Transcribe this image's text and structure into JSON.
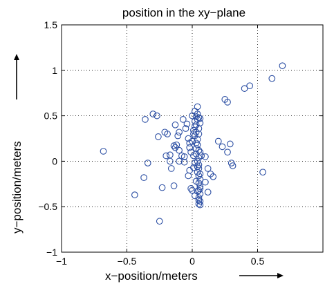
{
  "chart_data": {
    "type": "scatter",
    "title": "position in the xy−plane",
    "xlabel": "x−position/meters",
    "ylabel": "y−position/meters",
    "xlim": [
      -1,
      1
    ],
    "ylim": [
      -1,
      1.5
    ],
    "x_ticks": [
      -1,
      -0.5,
      0,
      0.5
    ],
    "x_tick_labels": [
      "−1",
      "−0.5",
      "0",
      "0.5"
    ],
    "y_ticks": [
      -1,
      -0.5,
      0,
      0.5,
      1,
      1.5
    ],
    "y_tick_labels": [
      "−1",
      "−0.5",
      "0",
      "0.5",
      "1",
      "1.5"
    ],
    "grid": true,
    "grid_style": "dotted",
    "marker": "open-circle",
    "marker_color": "#2b4ea3",
    "axis_label_arrows": true,
    "series": [
      {
        "points": [
          [
            -0.68,
            0.11
          ],
          [
            -0.44,
            -0.37
          ],
          [
            -0.37,
            -0.18
          ],
          [
            -0.34,
            -0.02
          ],
          [
            -0.36,
            0.46
          ],
          [
            -0.3,
            0.52
          ],
          [
            -0.27,
            0.5
          ],
          [
            -0.26,
            0.27
          ],
          [
            -0.23,
            -0.29
          ],
          [
            -0.21,
            0.32
          ],
          [
            -0.19,
            0.3
          ],
          [
            -0.2,
            0.06
          ],
          [
            -0.17,
            0.07
          ],
          [
            -0.16,
            -0.08
          ],
          [
            -0.17,
            0.0
          ],
          [
            -0.14,
            0.17
          ],
          [
            -0.13,
            0.15
          ],
          [
            -0.12,
            0.18
          ],
          [
            -0.11,
            0.28
          ],
          [
            -0.13,
            0.4
          ],
          [
            -0.1,
            0.32
          ],
          [
            -0.1,
            0.12
          ],
          [
            -0.08,
            0.06
          ],
          [
            -0.1,
            0.0
          ],
          [
            -0.06,
            0.05
          ],
          [
            -0.07,
            0.46
          ],
          [
            -0.05,
            0.36
          ],
          [
            -0.03,
            0.25
          ],
          [
            -0.02,
            0.2
          ],
          [
            -0.02,
            0.15
          ],
          [
            -0.01,
            0.1
          ],
          [
            -0.02,
            -0.1
          ],
          [
            -0.03,
            -0.16
          ],
          [
            -0.01,
            -0.3
          ],
          [
            0.0,
            -0.32
          ],
          [
            0.02,
            -0.38
          ],
          [
            -0.25,
            -0.66
          ],
          [
            -0.14,
            -0.27
          ],
          [
            -0.06,
            -0.01
          ],
          [
            -0.04,
            0.41
          ],
          [
            0.0,
            0.5
          ],
          [
            0.02,
            0.55
          ],
          [
            0.04,
            0.6
          ],
          [
            0.01,
            0.34
          ],
          [
            0.03,
            0.32
          ],
          [
            0.06,
            0.1
          ],
          [
            0.1,
            0.05
          ],
          [
            0.12,
            -0.08
          ],
          [
            0.14,
            -0.14
          ],
          [
            0.16,
            -0.17
          ],
          [
            0.1,
            -0.23
          ],
          [
            0.12,
            -0.34
          ],
          [
            0.2,
            0.22
          ],
          [
            0.23,
            0.16
          ],
          [
            0.25,
            0.68
          ],
          [
            0.27,
            0.65
          ],
          [
            0.27,
            0.1
          ],
          [
            0.29,
            0.19
          ],
          [
            0.3,
            -0.02
          ],
          [
            0.31,
            -0.05
          ],
          [
            0.4,
            0.8
          ],
          [
            0.44,
            0.83
          ],
          [
            0.54,
            -0.12
          ],
          [
            0.61,
            0.91
          ],
          [
            0.69,
            1.05
          ],
          [
            0.03,
            0.49
          ],
          [
            0.04,
            0.52
          ],
          [
            0.05,
            0.48
          ],
          [
            0.02,
            0.44
          ],
          [
            0.03,
            0.4
          ],
          [
            0.05,
            0.36
          ],
          [
            0.06,
            0.42
          ],
          [
            0.05,
            0.3
          ],
          [
            0.02,
            0.28
          ],
          [
            0.04,
            0.24
          ],
          [
            0.04,
            0.18
          ],
          [
            0.05,
            0.12
          ],
          [
            0.03,
            0.08
          ],
          [
            0.05,
            0.04
          ],
          [
            0.04,
            0.0
          ],
          [
            0.05,
            -0.04
          ],
          [
            0.05,
            -0.08
          ],
          [
            0.04,
            -0.12
          ],
          [
            0.05,
            -0.16
          ],
          [
            0.06,
            -0.2
          ],
          [
            0.05,
            -0.24
          ],
          [
            0.06,
            -0.28
          ],
          [
            0.05,
            -0.32
          ],
          [
            0.06,
            -0.36
          ],
          [
            0.05,
            -0.4
          ],
          [
            0.06,
            -0.44
          ],
          [
            0.05,
            -0.47
          ],
          [
            0.06,
            -0.48
          ],
          [
            0.01,
            -0.07
          ],
          [
            0.02,
            -0.02
          ],
          [
            0.01,
            0.06
          ],
          [
            0.0,
            0.22
          ],
          [
            0.01,
            0.3
          ],
          [
            0.03,
            0.14
          ],
          [
            0.07,
            0.06
          ],
          [
            0.04,
            -0.06
          ],
          [
            0.04,
            0.46
          ],
          [
            0.06,
            0.47
          ],
          [
            0.03,
            0.2
          ],
          [
            0.02,
            0.38
          ],
          [
            0.06,
            -0.14
          ],
          [
            0.06,
            -0.3
          ],
          [
            0.04,
            -0.33
          ],
          [
            0.05,
            -0.43
          ],
          [
            0.03,
            -0.22
          ]
        ]
      }
    ]
  }
}
